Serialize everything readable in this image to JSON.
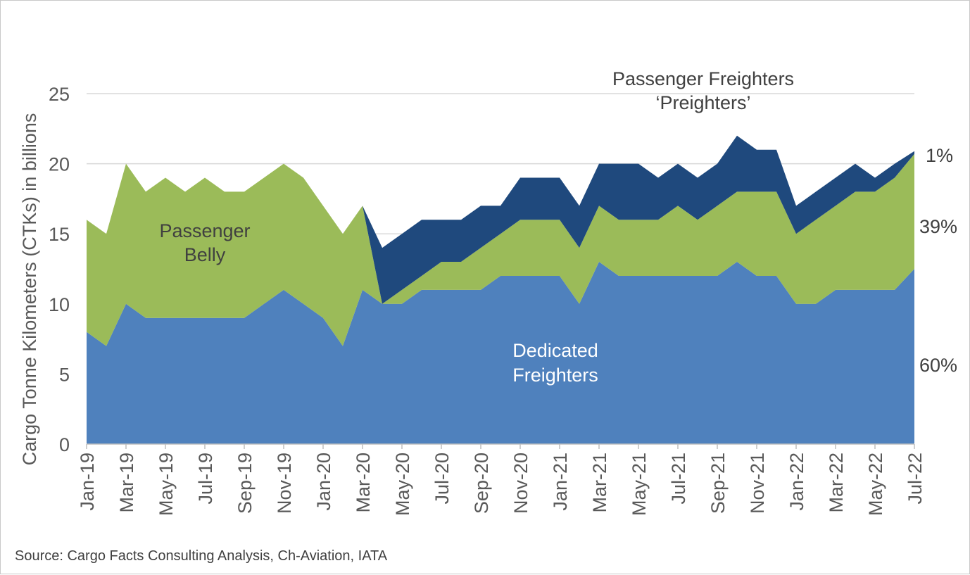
{
  "chart_data": {
    "type": "area",
    "stacked": true,
    "x": [
      "Jan-19",
      "Feb-19",
      "Mar-19",
      "Apr-19",
      "May-19",
      "Jun-19",
      "Jul-19",
      "Aug-19",
      "Sep-19",
      "Oct-19",
      "Nov-19",
      "Dec-19",
      "Jan-20",
      "Feb-20",
      "Mar-20",
      "Apr-20",
      "May-20",
      "Jun-20",
      "Jul-20",
      "Aug-20",
      "Sep-20",
      "Oct-20",
      "Nov-20",
      "Dec-20",
      "Jan-21",
      "Feb-21",
      "Mar-21",
      "Apr-21",
      "May-21",
      "Jun-21",
      "Jul-21",
      "Aug-21",
      "Sep-21",
      "Oct-21",
      "Nov-21",
      "Dec-21",
      "Jan-22",
      "Feb-22",
      "Mar-22",
      "Apr-22",
      "May-22",
      "Jun-22",
      "Jul-22"
    ],
    "x_tick_labels": [
      "Jan-19",
      "Mar-19",
      "May-19",
      "Jul-19",
      "Sep-19",
      "Nov-19",
      "Jan-20",
      "Mar-20",
      "May-20",
      "Jul-20",
      "Sep-20",
      "Nov-20",
      "Jan-21",
      "Mar-21",
      "May-21",
      "Jul-21",
      "Sep-21",
      "Nov-21",
      "Jan-22",
      "Mar-22",
      "May-22",
      "Jul-22"
    ],
    "series": [
      {
        "name": "Dedicated Freighters",
        "color": "#4f81bd",
        "values": [
          8,
          7,
          10,
          9,
          9,
          9,
          9,
          9,
          9,
          10,
          11,
          10,
          9,
          7,
          11,
          10,
          10,
          11,
          11,
          11,
          11,
          12,
          12,
          12,
          12,
          10,
          13,
          12,
          12,
          12,
          12,
          12,
          12,
          13,
          12,
          12,
          10,
          10,
          11,
          11,
          11,
          11,
          12.5
        ]
      },
      {
        "name": "Passenger Belly",
        "color": "#9bbb59",
        "values": [
          8,
          8,
          10,
          9,
          10,
          9,
          10,
          9,
          9,
          9,
          9,
          9,
          8,
          8,
          6,
          0,
          1,
          1,
          2,
          2,
          3,
          3,
          4,
          4,
          4,
          4,
          4,
          4,
          4,
          4,
          5,
          4,
          5,
          5,
          6,
          6,
          5,
          6,
          6,
          7,
          7,
          8,
          8.2
        ]
      },
      {
        "name": "Passenger Freighters 'Preighters'",
        "color": "#1f497d",
        "values": [
          0,
          0,
          0,
          0,
          0,
          0,
          0,
          0,
          0,
          0,
          0,
          0,
          0,
          0,
          0,
          4,
          4,
          4,
          3,
          3,
          3,
          2,
          3,
          3,
          3,
          3,
          3,
          4,
          4,
          3,
          3,
          3,
          3,
          4,
          3,
          3,
          2,
          2,
          2,
          2,
          1,
          1,
          0.2
        ]
      }
    ],
    "ylabel": "Cargo Tonne Kilometers (CTKs) in billions",
    "ylim": [
      0,
      25
    ],
    "yticks": [
      0,
      5,
      10,
      15,
      20,
      25
    ],
    "grid": true,
    "annotations": {
      "belly_line1": "Passenger",
      "belly_line2": "Belly",
      "freighter_line1": "Dedicated",
      "freighter_line2": "Freighters",
      "preighter_line1": "Passenger Freighters",
      "preighter_line2": "‘Preighters’"
    },
    "shares": {
      "preighters": "1%",
      "belly": "39%",
      "freighters": "60%"
    }
  },
  "source": "Source: Cargo Facts Consulting Analysis, Ch-Aviation, IATA"
}
